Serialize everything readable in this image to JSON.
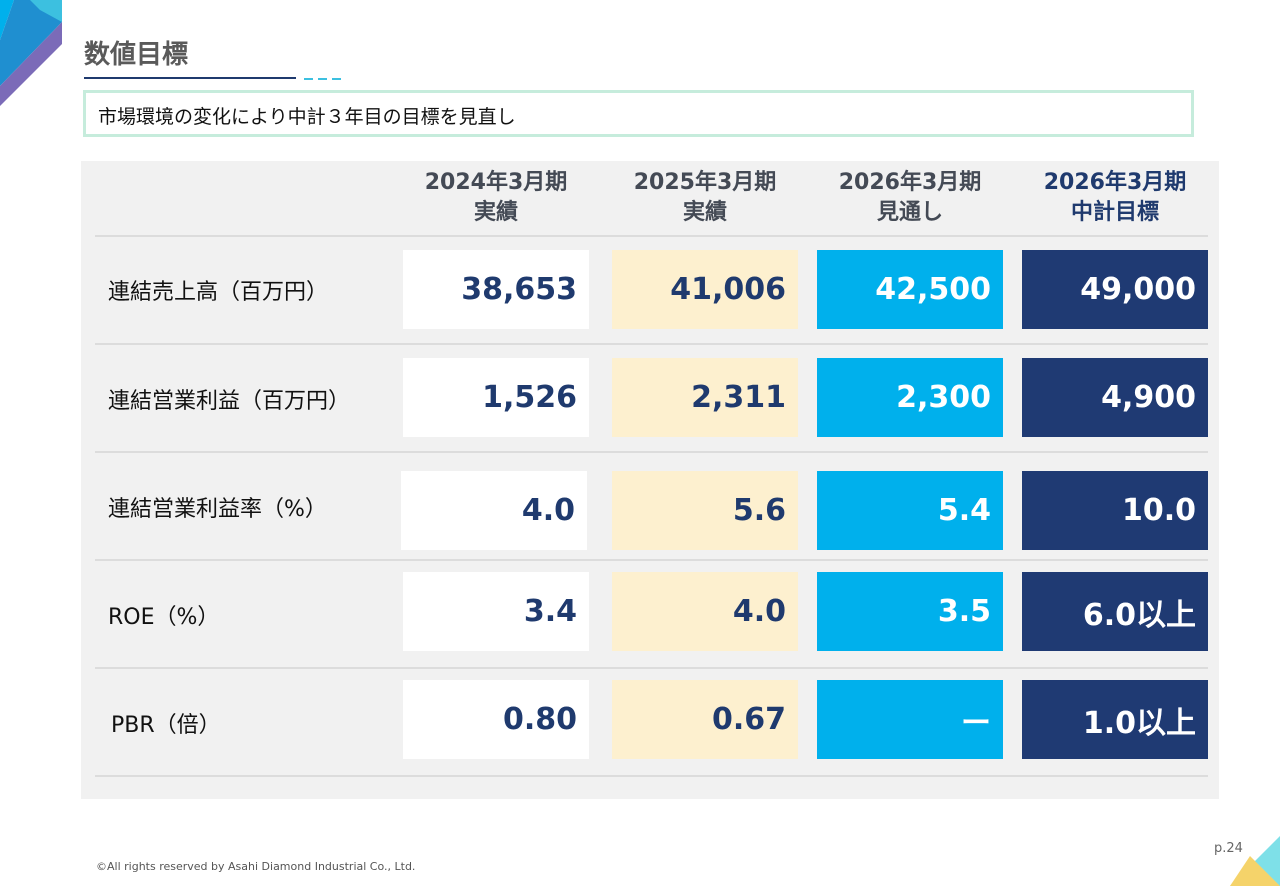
{
  "header": {
    "title": "数値目標",
    "subtitle": "市場環境の変化により中計３年目の目標を見直し"
  },
  "table": {
    "columns": [
      {
        "line1": "2024年3月期",
        "line2": "実績"
      },
      {
        "line1": "2025年3月期",
        "line2": "実績"
      },
      {
        "line1": "2026年3月期",
        "line2": "見通し"
      },
      {
        "line1": "2026年3月期",
        "line2": "中計目標"
      }
    ],
    "rows": [
      {
        "label": "連結売上高（百万円）",
        "values": [
          "38,653",
          "41,006",
          "42,500",
          "49,000"
        ]
      },
      {
        "label": "連結営業利益（百万円）",
        "values": [
          "1,526",
          "2,311",
          "2,300",
          "4,900"
        ]
      },
      {
        "label": "連結営業利益率（%）",
        "values": [
          "4.0",
          "5.6",
          "5.4",
          "10.0"
        ]
      },
      {
        "label": "ROE（%）",
        "values": [
          "3.4",
          "4.0",
          "3.5",
          "6.0以上"
        ]
      },
      {
        "label": "PBR（倍）",
        "values": [
          "0.80",
          "0.67",
          "ー",
          "1.0以上"
        ]
      }
    ]
  },
  "colors": {
    "actual_2024": "#ffffff",
    "actual_2025": "#fdf0cf",
    "forecast": "#00b0ec",
    "target": "#1f3a73"
  },
  "footer": {
    "copyright": "©All rights reserved by Asahi Diamond Industrial Co., Ltd.",
    "page": "p.24"
  }
}
